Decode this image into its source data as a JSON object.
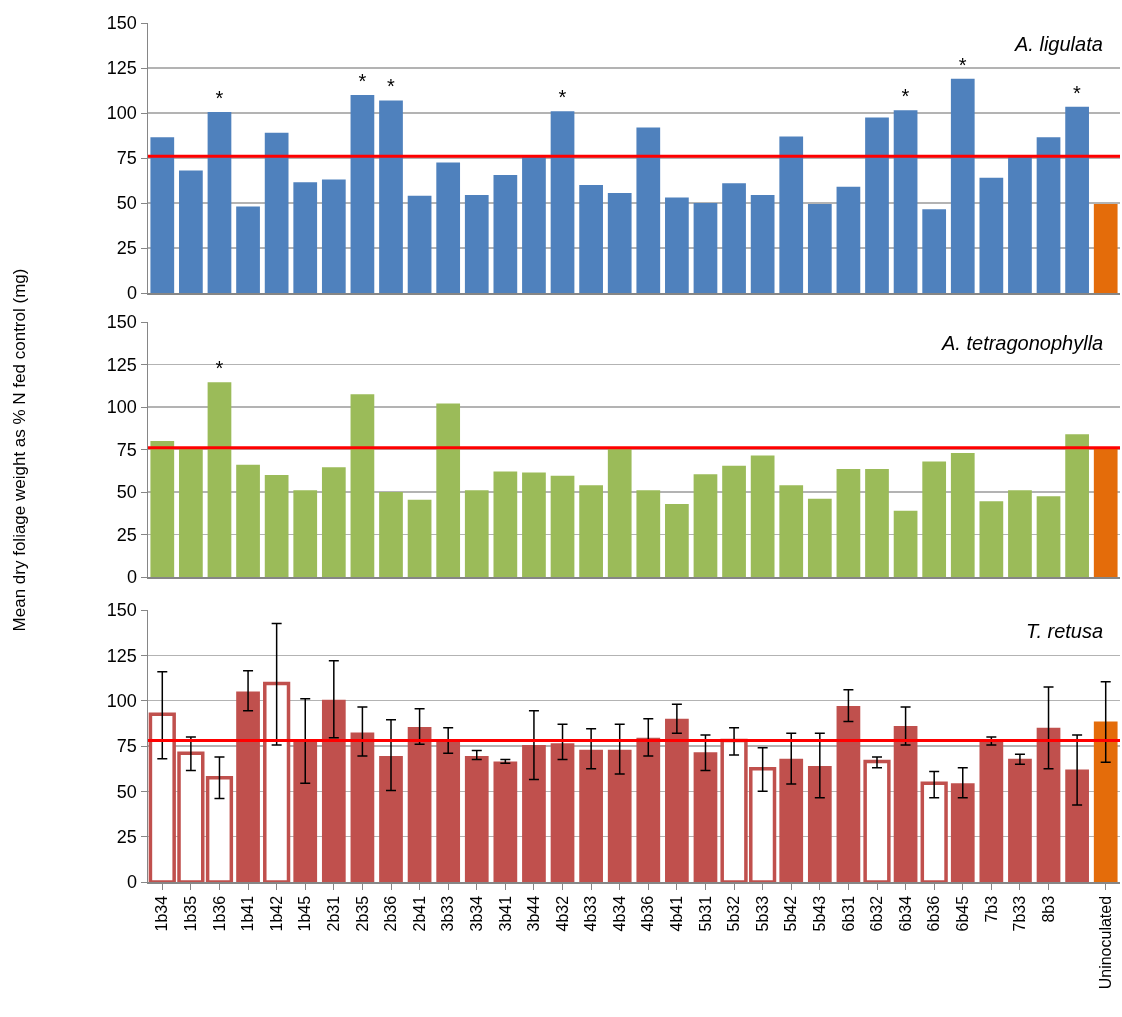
{
  "chart_data": [
    {
      "type": "bar",
      "title": "A. ligulata",
      "categories": [
        null,
        null,
        null,
        null,
        null,
        null,
        null,
        null,
        null,
        null,
        null,
        null,
        null,
        null,
        null,
        null,
        null,
        null,
        null,
        null,
        null,
        null,
        null,
        null,
        null,
        null,
        null,
        null,
        null,
        null,
        null,
        null,
        null,
        null
      ],
      "values": [
        86.5,
        68,
        100.5,
        48,
        89,
        61.5,
        63,
        110,
        107,
        54,
        72.5,
        54.5,
        65.5,
        75.5,
        101,
        60,
        55.5,
        92,
        53,
        50,
        61,
        54.5,
        87,
        49.5,
        59,
        97.5,
        101.5,
        46.5,
        119,
        64,
        75.5,
        86.5,
        103.5,
        49.5
      ],
      "value_labels": [
        null,
        null,
        "*",
        null,
        null,
        null,
        null,
        "*",
        "*",
        null,
        null,
        null,
        null,
        null,
        "*",
        null,
        null,
        null,
        null,
        null,
        null,
        null,
        null,
        null,
        null,
        null,
        "*",
        null,
        "*",
        null,
        null,
        null,
        "*",
        null
      ],
      "color": "#4f81bd",
      "colors": [
        null,
        null,
        null,
        null,
        null,
        null,
        null,
        null,
        null,
        null,
        null,
        null,
        null,
        null,
        null,
        null,
        null,
        null,
        null,
        null,
        null,
        null,
        null,
        null,
        null,
        null,
        null,
        null,
        null,
        null,
        null,
        null,
        null,
        "#e46c0a"
      ],
      "ylim": [
        0,
        150
      ],
      "yticks": [
        0,
        25,
        50,
        75,
        100,
        125,
        150
      ],
      "grid": "y",
      "ref_lines": [
        {
          "axis": "y",
          "value": 76,
          "color": "#ff0000"
        }
      ]
    },
    {
      "type": "bar",
      "title": "A. tetragonophylla",
      "ylabel": "Mean dry foliage weight as % N fed control (mg)",
      "categories": [
        null,
        null,
        null,
        null,
        null,
        null,
        null,
        null,
        null,
        null,
        null,
        null,
        null,
        null,
        null,
        null,
        null,
        null,
        null,
        null,
        null,
        null,
        null,
        null,
        null,
        null,
        null,
        null,
        null,
        null,
        null,
        null,
        null,
        null
      ],
      "values": [
        80,
        76,
        114.5,
        66,
        60,
        51,
        64.5,
        107.5,
        50,
        45.5,
        102,
        51,
        62,
        61.5,
        59.5,
        54,
        75.5,
        51,
        43,
        60.5,
        65.5,
        71.5,
        54,
        46,
        63.5,
        63.5,
        39,
        68,
        73,
        44.5,
        51,
        47.5,
        84,
        76
      ],
      "value_labels": [
        null,
        null,
        "*",
        null,
        null,
        null,
        null,
        null,
        null,
        null,
        null,
        null,
        null,
        null,
        null,
        null,
        null,
        null,
        null,
        null,
        null,
        null,
        null,
        null,
        null,
        null,
        null,
        null,
        null,
        null,
        null,
        null,
        null,
        null
      ],
      "color": "#9bbb59",
      "colors": [
        null,
        null,
        null,
        null,
        null,
        null,
        null,
        null,
        null,
        null,
        null,
        null,
        null,
        null,
        null,
        null,
        null,
        null,
        null,
        null,
        null,
        null,
        null,
        null,
        null,
        null,
        null,
        null,
        null,
        null,
        null,
        null,
        null,
        "#e46c0a"
      ],
      "ylim": [
        0,
        150
      ],
      "yticks": [
        0,
        25,
        50,
        75,
        100,
        125,
        150
      ],
      "grid": "y",
      "ref_lines": [
        {
          "axis": "y",
          "value": 76,
          "color": "#ff0000"
        }
      ]
    },
    {
      "type": "bar",
      "title": "T. retusa",
      "categories": [
        "1b34",
        "1b35",
        "1b36",
        "1b41",
        "1b42",
        "1b45",
        "2b31",
        "2b35",
        "2b36",
        "2b41",
        "3b33",
        "3b34",
        "3b41",
        "3b44",
        "4b32",
        "4b33",
        "4b34",
        "4b36",
        "4b41",
        "5b31",
        "5b32",
        "5b33",
        "5b42",
        "5b43",
        "6b31",
        "6b32",
        "6b34",
        "6b36",
        "6b45",
        "7b3",
        "7b33",
        "8b3",
        null,
        "Uninoculated"
      ],
      "values": [
        92.5,
        71,
        57.5,
        105,
        109.5,
        78,
        100.5,
        82.5,
        69.5,
        85.5,
        78.5,
        69.5,
        66.5,
        75.5,
        76.5,
        73,
        73,
        79.5,
        90,
        71.5,
        78,
        62.5,
        68,
        64,
        97,
        66.5,
        86,
        54.5,
        54.5,
        78,
        68,
        85,
        62,
        88.5
      ],
      "errors": [
        [
          68,
          116
        ],
        [
          61.5,
          80
        ],
        [
          46,
          69
        ],
        [
          94.5,
          116.5
        ],
        [
          75.5,
          142.5
        ],
        [
          54.5,
          101
        ],
        [
          79.5,
          122
        ],
        [
          69.5,
          96.5
        ],
        [
          50.5,
          89.5
        ],
        [
          76,
          95.5
        ],
        [
          71,
          85
        ],
        [
          67.5,
          72.5
        ],
        [
          65.5,
          67.5
        ],
        [
          56.5,
          94.5
        ],
        [
          67.5,
          87
        ],
        [
          62.5,
          84.5
        ],
        [
          59.5,
          87
        ],
        [
          69.5,
          90
        ],
        [
          82,
          98
        ],
        [
          61.5,
          81
        ],
        [
          70,
          85
        ],
        [
          50,
          74
        ],
        [
          54,
          82
        ],
        [
          46.5,
          82
        ],
        [
          88.5,
          106
        ],
        [
          63,
          69
        ],
        [
          75.5,
          96.5
        ],
        [
          46.5,
          61
        ],
        [
          46.5,
          63
        ],
        [
          75.5,
          80
        ],
        [
          65,
          70.5
        ],
        [
          62.5,
          107.5
        ],
        [
          42.5,
          81
        ],
        [
          66,
          110.5
        ]
      ],
      "color": "#c0504d",
      "colors": [
        "#ffffff",
        "#ffffff",
        "#ffffff",
        null,
        "#ffffff",
        null,
        null,
        null,
        null,
        null,
        null,
        null,
        null,
        null,
        null,
        null,
        null,
        null,
        null,
        null,
        "#ffffff",
        "#ffffff",
        null,
        null,
        null,
        "#ffffff",
        null,
        "#ffffff",
        null,
        null,
        null,
        null,
        null,
        "#e46c0a"
      ],
      "ylim": [
        0,
        150
      ],
      "yticks": [
        0,
        25,
        50,
        75,
        100,
        125,
        150
      ],
      "grid": "y",
      "ref_lines": [
        {
          "axis": "y",
          "value": 78,
          "color": "#ff0000"
        }
      ]
    }
  ]
}
